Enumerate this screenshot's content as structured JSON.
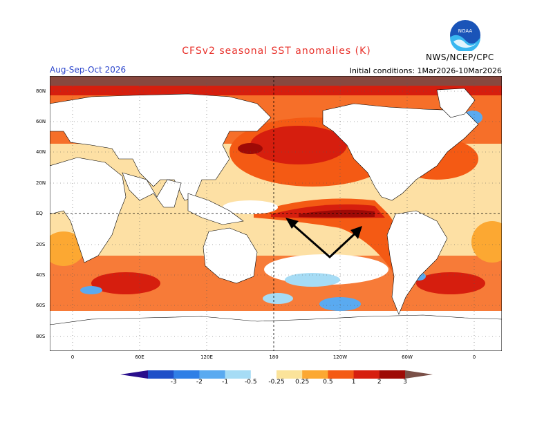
{
  "header": {
    "title": "CFSv2 seasonal SST anomalies (K)",
    "season": "Aug-Sep-Oct 2026",
    "initial_conditions": "Initial conditions: 1Mar2026-10Mar2026",
    "agency": "NWS/NCEP/CPC",
    "logo_text": "NOAA"
  },
  "map": {
    "lat_labels": [
      "80N",
      "60N",
      "40N",
      "20N",
      "EQ",
      "20S",
      "40S",
      "60S",
      "80S"
    ],
    "lon_labels": [
      "0",
      "60E",
      "120E",
      "180",
      "120W",
      "60W",
      "0"
    ]
  },
  "colorbar": {
    "labels": [
      "-3",
      "-2",
      "-1",
      "-0.5",
      "-0.25",
      "0.25",
      "0.5",
      "1",
      "2",
      "3"
    ],
    "colors": [
      "#2a0f8c",
      "#1e4fc8",
      "#2f7fe6",
      "#5aaaf0",
      "#a6dcf5",
      "#ffffff",
      "#fbe39a",
      "#fca832",
      "#f45a14",
      "#d61e0e",
      "#9e0a06",
      "#7a5048"
    ]
  }
}
